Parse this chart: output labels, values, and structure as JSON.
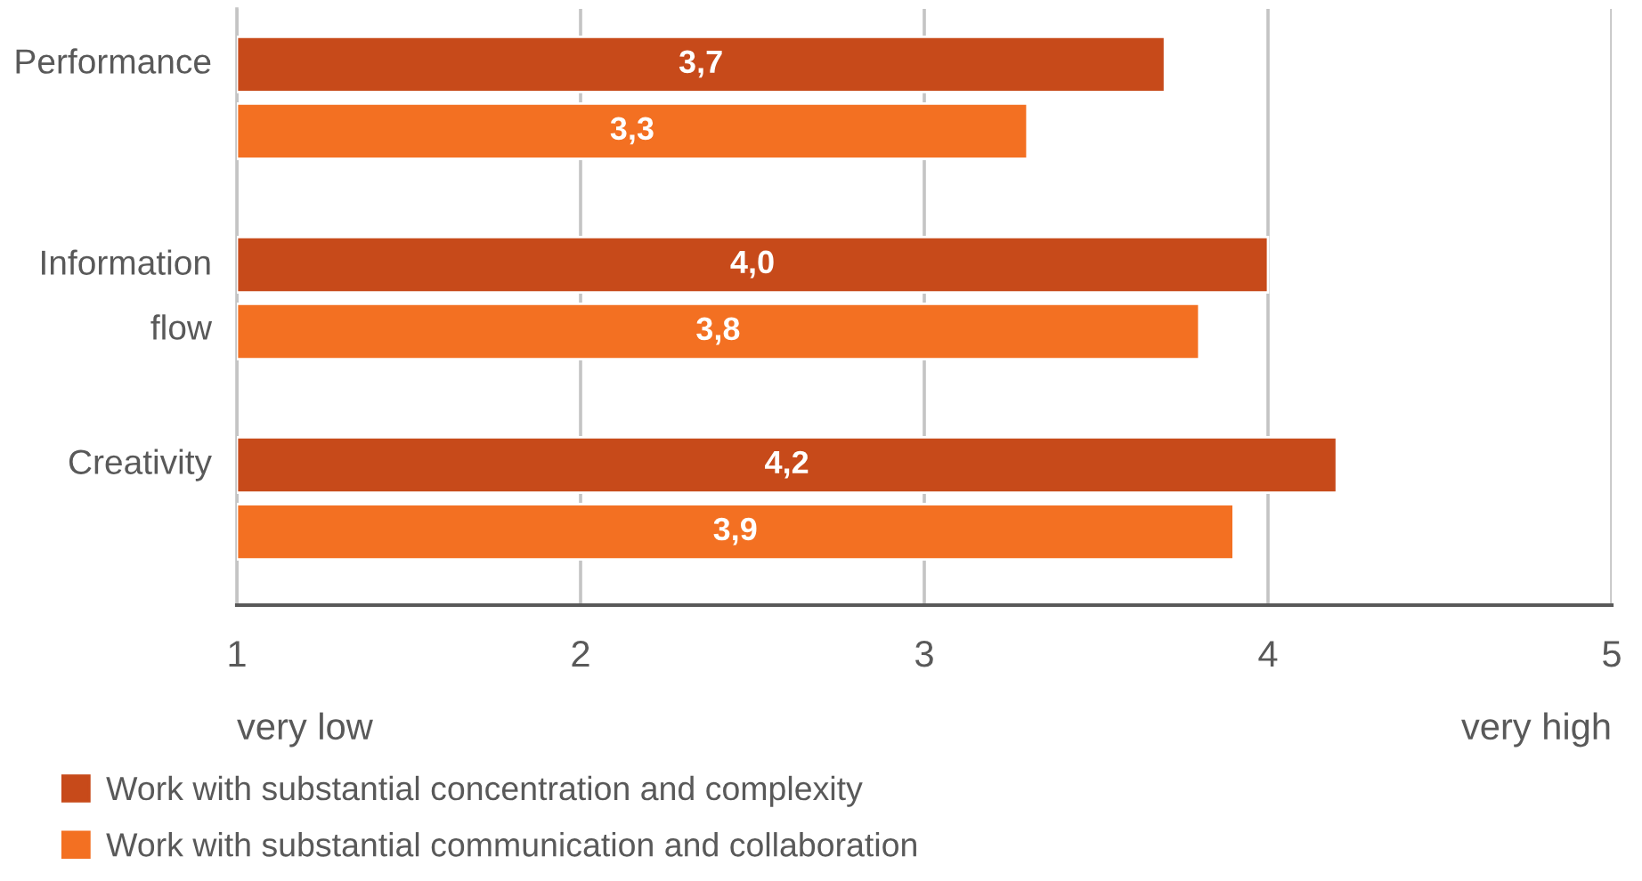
{
  "chart_data": {
    "type": "bar",
    "orientation": "horizontal",
    "categories": [
      "Performance",
      "Information flow",
      "Creativity"
    ],
    "series": [
      {
        "name": "Work with substantial concentration and complexity",
        "color": "#c74a1a",
        "values": [
          3.7,
          4.0,
          4.2
        ],
        "value_labels": [
          "3,7",
          "4,0",
          "4,2"
        ]
      },
      {
        "name": "Work with substantial communication and collaboration",
        "color": "#f37022",
        "values": [
          3.3,
          3.8,
          3.9
        ],
        "value_labels": [
          "3,3",
          "3,8",
          "3,9"
        ]
      }
    ],
    "xlim": [
      1,
      5
    ],
    "xticks": [
      1,
      2,
      3,
      4,
      5
    ],
    "grid": "x",
    "legend": "bottom",
    "annotations": [
      "very low",
      "very high"
    ]
  }
}
